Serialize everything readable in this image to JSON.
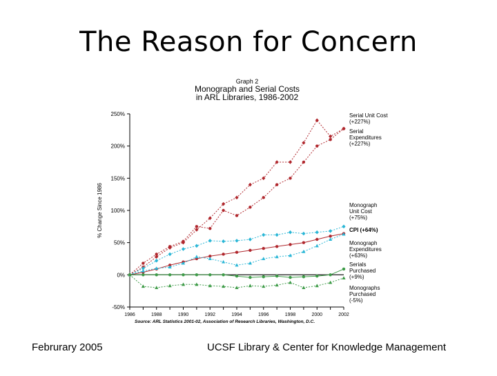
{
  "slide": {
    "title": "The Reason for Concern",
    "footer_left": "Februrary 2005",
    "footer_right": "UCSF Library & Center for Knowledge Management"
  },
  "chart_data": {
    "type": "line",
    "graph_label": "Graph 2",
    "title": "Monograph and Serial Costs",
    "subtitle": "in ARL Libraries, 1986-2002",
    "ylabel": "% Change Since 1986",
    "xlabel": "",
    "source": "Source: ARL Statistics 2001-02, Association of Research Libraries, Washington, D.C.",
    "ylim": [
      -50,
      250
    ],
    "yticks": [
      -50,
      0,
      50,
      100,
      150,
      200,
      250
    ],
    "ytick_labels": [
      "-50%",
      "0%",
      "50%",
      "100%",
      "150%",
      "200%",
      "250%"
    ],
    "x": [
      1986,
      1987,
      1988,
      1989,
      1990,
      1991,
      1992,
      1993,
      1994,
      1995,
      1996,
      1997,
      1998,
      1999,
      2000,
      2001,
      2002
    ],
    "xtick_labels": [
      "1986",
      "1988",
      "1990",
      "1992",
      "1994",
      "1996",
      "1998",
      "2000",
      "2002"
    ],
    "xtick_values": [
      1986,
      1988,
      1990,
      1992,
      1994,
      1996,
      1998,
      2000,
      2002
    ],
    "grid": false,
    "series": [
      {
        "name": "Serial Unit Cost (+227%)",
        "color": "#b0272d",
        "marker": "diamond",
        "dash": "2,2",
        "values": [
          0,
          12,
          28,
          42,
          50,
          70,
          88,
          110,
          120,
          140,
          150,
          175,
          175,
          205,
          240,
          215,
          227
        ]
      },
      {
        "name": "Serial Expenditures (+227%)",
        "color": "#b0272d",
        "marker": "circle",
        "dash": "2,2",
        "values": [
          0,
          18,
          32,
          44,
          52,
          75,
          72,
          100,
          92,
          105,
          120,
          140,
          150,
          175,
          200,
          210,
          227
        ]
      },
      {
        "name": "Monograph Unit Cost (+75%)",
        "color": "#29b6d6",
        "marker": "diamond",
        "dash": "2,2",
        "values": [
          0,
          10,
          22,
          32,
          40,
          45,
          53,
          52,
          53,
          55,
          62,
          62,
          66,
          64,
          66,
          68,
          75
        ]
      },
      {
        "name": "CPI (+64%)",
        "color": "#b0272d",
        "marker": "circle",
        "dash": "",
        "values": [
          0,
          4,
          9,
          15,
          20,
          25,
          29,
          32,
          35,
          38,
          41,
          44,
          47,
          50,
          55,
          60,
          64
        ]
      },
      {
        "name": "Monograph Expenditures (+63%)",
        "color": "#29b6d6",
        "marker": "triangle",
        "dash": "2,2",
        "values": [
          0,
          6,
          10,
          12,
          18,
          28,
          25,
          20,
          15,
          18,
          25,
          28,
          30,
          36,
          45,
          55,
          63
        ]
      },
      {
        "name": "Serials Purchased (+9%)",
        "color": "#3c9a46",
        "marker": "circle",
        "dash": "",
        "values": [
          0,
          0,
          0,
          0,
          0,
          0,
          0,
          0,
          -2,
          -4,
          -3,
          -2,
          -4,
          -3,
          -2,
          0,
          9
        ]
      },
      {
        "name": "Monographs Purchased (-5%)",
        "color": "#3c9a46",
        "marker": "triangle",
        "dash": "2,2",
        "values": [
          0,
          -18,
          -20,
          -17,
          -15,
          -15,
          -17,
          -18,
          -20,
          -17,
          -18,
          -16,
          -12,
          -20,
          -17,
          -12,
          -5
        ]
      }
    ],
    "legend": [
      {
        "label": "Serial Unit Cost (+227%)",
        "lines": [
          "Serial Unit Cost",
          "(+227%)"
        ]
      },
      {
        "label": "Serial Expenditures (+227%)",
        "lines": [
          "Serial",
          "Expenditures",
          "(+227%)"
        ]
      },
      {
        "label": "Monograph Unit Cost (+75%)",
        "lines": [
          "Monograph",
          "Unit Cost",
          "(+75%)"
        ]
      },
      {
        "label": "CPI (+64%)",
        "lines": [
          "CPI (+64%)"
        ]
      },
      {
        "label": "Monograph Expenditures (+63%)",
        "lines": [
          "Monograph",
          "Expenditures",
          "(+63%)"
        ]
      },
      {
        "label": "Serials Purchased (+9%)",
        "lines": [
          "Serials",
          "Purchased",
          "(+9%)"
        ]
      },
      {
        "label": "Monographs Purchased (-5%)",
        "lines": [
          "Monographs",
          "Purchased",
          "(-5%)"
        ]
      }
    ]
  }
}
